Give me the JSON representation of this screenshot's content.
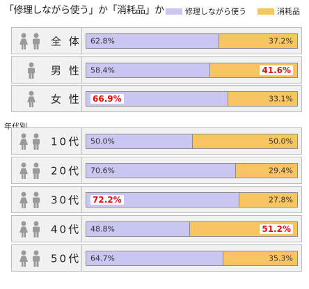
{
  "title": "「修理しながら使う」か「消耗品」か",
  "legend": [
    {
      "label": "修理しながら使う",
      "color": "#c9c7f2"
    },
    {
      "label": "消耗品",
      "color": "#f8c562"
    }
  ],
  "section_label": "年代別",
  "chart_data": {
    "type": "bar",
    "stacked": true,
    "orientation": "horizontal",
    "categories": [
      "全 体",
      "男 性",
      "女 性",
      "10代",
      "20代",
      "30代",
      "40代",
      "50代"
    ],
    "series": [
      {
        "name": "修理しながら使う",
        "color": "#c9c7f2",
        "values": [
          62.8,
          58.4,
          66.9,
          50.0,
          70.6,
          72.2,
          48.8,
          64.7
        ]
      },
      {
        "name": "消耗品",
        "color": "#f8c562",
        "values": [
          37.2,
          41.6,
          33.1,
          50.0,
          29.4,
          27.8,
          51.2,
          35.3
        ]
      }
    ],
    "labels_a": [
      "62.8%",
      "58.4%",
      "66.9%",
      "50.0%",
      "70.6%",
      "72.2%",
      "48.8%",
      "64.7%"
    ],
    "labels_b": [
      "37.2%",
      "41.6%",
      "33.1%",
      "50.0%",
      "29.4%",
      "27.8%",
      "51.2%",
      "35.3%"
    ],
    "highlight": [
      {
        "row": 2,
        "series": 0
      },
      {
        "row": 5,
        "series": 0
      },
      {
        "row": 1,
        "series": 1
      },
      {
        "row": 6,
        "series": 1
      }
    ],
    "highlight_color": "#e01010",
    "icons": [
      "people-mixed",
      "person-male",
      "person-female",
      "people-mixed",
      "people-mixed",
      "people-mixed",
      "people-mixed",
      "people-mixed"
    ],
    "xlim": [
      0,
      100
    ]
  }
}
